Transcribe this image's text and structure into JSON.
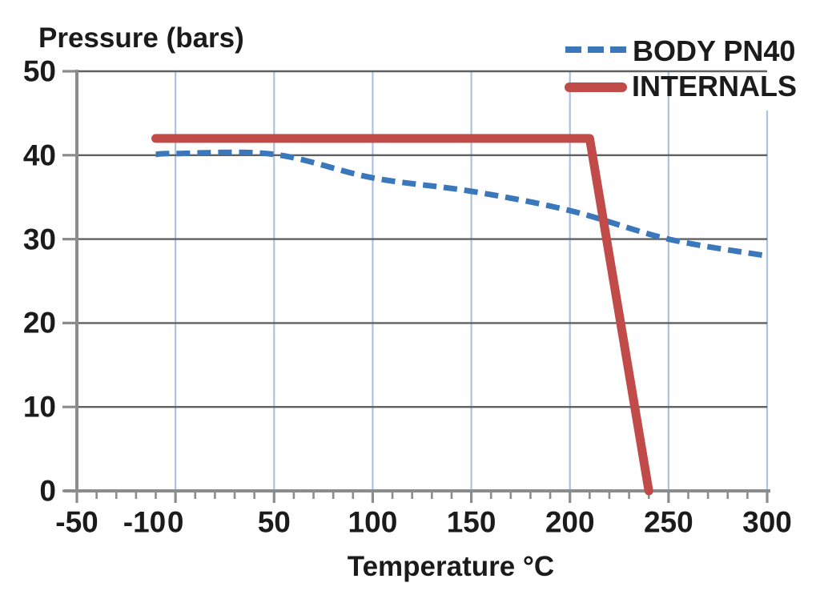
{
  "chart_data": {
    "type": "line",
    "title": "",
    "ylabel": "Pressure (bars)",
    "xlabel": "Temperature °C",
    "xlim": [
      -50,
      300
    ],
    "ylim": [
      0,
      50
    ],
    "x_tick_labels": [
      -50,
      -10,
      0,
      50,
      100,
      150,
      200,
      250,
      300
    ],
    "y_tick_labels": [
      0,
      10,
      20,
      30,
      40,
      50
    ],
    "x_gridline_values": [
      0,
      50,
      100,
      150,
      200,
      250,
      300
    ],
    "y_gridline_values": [
      10,
      20,
      30,
      40,
      50
    ],
    "x_minor_tick_step": 10,
    "grid": true,
    "legend_position": "top-right",
    "series": [
      {
        "name": "BODY PN40",
        "style": "dashed",
        "color": "#3b77bb",
        "smooth": true,
        "points": [
          [
            -10,
            40.1
          ],
          [
            0,
            40.2
          ],
          [
            50,
            40.1
          ],
          [
            100,
            37.3
          ],
          [
            150,
            35.7
          ],
          [
            200,
            33.4
          ],
          [
            250,
            30
          ],
          [
            300,
            28
          ]
        ]
      },
      {
        "name": "INTERNALS",
        "style": "solid",
        "color": "#c04b48",
        "smooth": false,
        "points": [
          [
            -10,
            42
          ],
          [
            210,
            42
          ],
          [
            240,
            0
          ]
        ]
      }
    ],
    "colors": {
      "h_gridline": "#606060",
      "v_gridline": "#aec1dd",
      "axis": "#8c8c8c",
      "text": "#1b1b1b"
    }
  }
}
